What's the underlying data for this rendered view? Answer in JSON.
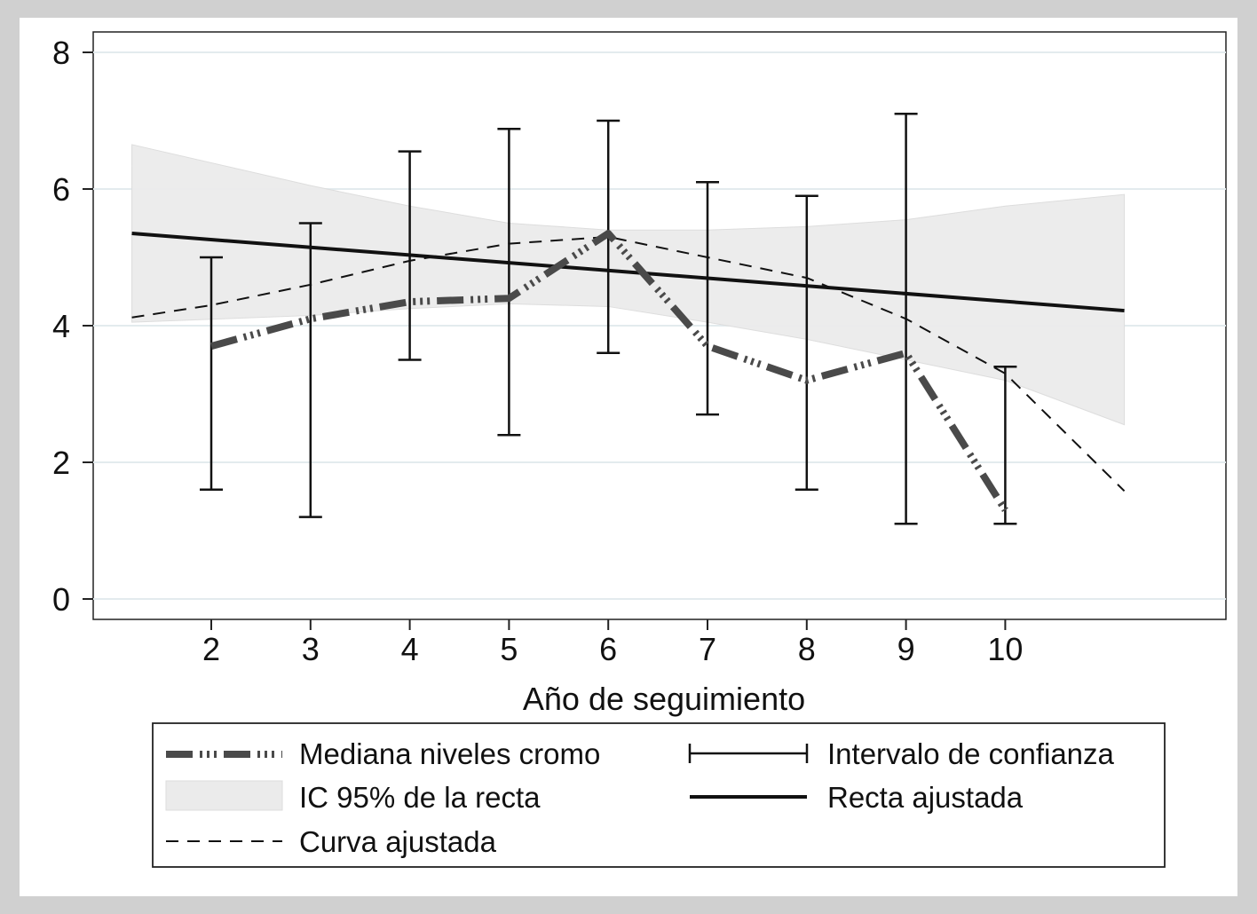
{
  "chart_data": {
    "type": "line",
    "xlabel": "Año de seguimiento",
    "ylabel": "",
    "xlim": [
      1,
      12
    ],
    "ylim": [
      0,
      8
    ],
    "x_ticks": [
      "2",
      "3",
      "4",
      "5",
      "6",
      "7",
      "8",
      "9",
      "10"
    ],
    "y_ticks": [
      "0",
      "2",
      "4",
      "6",
      "8"
    ],
    "grid": true,
    "legend_position": "bottom",
    "series": [
      {
        "name": "Mediana niveles cromo",
        "kind": "line",
        "x": [
          2,
          3,
          4,
          5,
          6,
          7,
          8,
          9,
          10
        ],
        "y": [
          3.7,
          4.1,
          4.35,
          4.4,
          5.35,
          3.7,
          3.2,
          3.6,
          1.3
        ]
      },
      {
        "name": "Intervalo de confianza",
        "kind": "errorbar",
        "x": [
          2,
          3,
          4,
          5,
          6,
          7,
          8,
          9,
          10
        ],
        "lower": [
          1.6,
          1.2,
          3.5,
          2.4,
          3.6,
          2.7,
          1.6,
          1.1,
          1.1
        ],
        "upper": [
          5.0,
          5.5,
          6.55,
          6.88,
          7.0,
          6.1,
          5.9,
          7.1,
          3.4
        ]
      },
      {
        "name": "IC 95% de la recta",
        "kind": "band",
        "x": [
          1.2,
          3.0,
          4.0,
          5.0,
          6.0,
          7.0,
          8.0,
          9.0,
          10.0,
          11.2
        ],
        "lower": [
          4.05,
          4.15,
          4.25,
          4.32,
          4.28,
          4.05,
          3.8,
          3.5,
          3.2,
          2.55
        ],
        "upper": [
          6.65,
          6.05,
          5.75,
          5.5,
          5.4,
          5.4,
          5.45,
          5.55,
          5.75,
          5.92
        ]
      },
      {
        "name": "Recta ajustada",
        "kind": "line",
        "x": [
          1.2,
          11.2
        ],
        "y": [
          5.35,
          4.22
        ]
      },
      {
        "name": "Curva ajustada",
        "kind": "line",
        "x": [
          1.2,
          2,
          3,
          4,
          5,
          6,
          7,
          8,
          9,
          10,
          11.2
        ],
        "y": [
          4.12,
          4.3,
          4.6,
          4.95,
          5.2,
          5.3,
          5.0,
          4.7,
          4.1,
          3.3,
          1.58
        ]
      }
    ],
    "legend": {
      "median": "Mediana niveles cromo",
      "ci": "Intervalo de confianza",
      "band": "IC 95% de la recta",
      "fitline": "Recta ajustada",
      "curve": "Curva ajustada"
    }
  }
}
